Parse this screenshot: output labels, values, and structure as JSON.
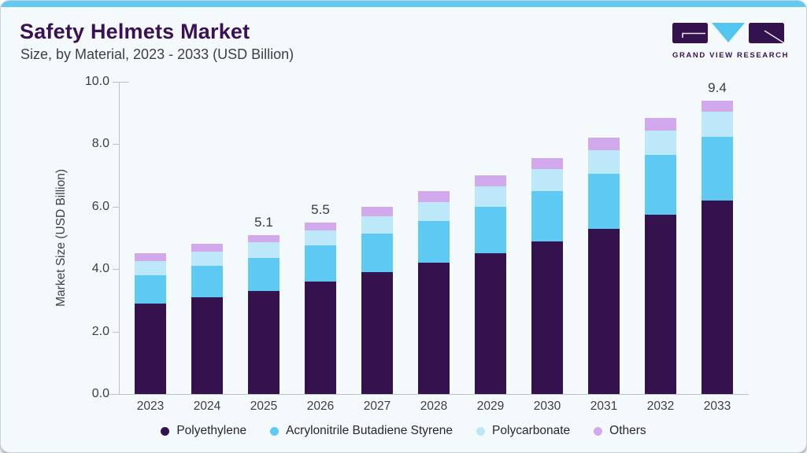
{
  "header": {
    "title": "Safety Helmets Market",
    "subtitle": "Size, by Material, 2023 - 2033 (USD Billion)",
    "logo_text": "GRAND VIEW RESEARCH"
  },
  "colors": {
    "accent_strip": "#64c9f1",
    "title_purple": "#3b1156",
    "card_background": "#f4f9fc",
    "axis_line": "#bcc2c9",
    "tick_text": "#3c3d44",
    "legend_text": "#28282e"
  },
  "chart_data": {
    "type": "bar",
    "stacked": true,
    "title": "Safety Helmets Market",
    "subtitle": "Size, by Material, 2023 - 2033 (USD Billion)",
    "xlabel": "",
    "ylabel": "Market Size (USD Billion)",
    "ylim": [
      0,
      10
    ],
    "ytick_step": 2,
    "ytick_labels": [
      "0.0",
      "2.0",
      "4.0",
      "6.0",
      "8.0",
      "10.0"
    ],
    "grid": false,
    "legend_position": "bottom",
    "categories": [
      "2023",
      "2024",
      "2025",
      "2026",
      "2027",
      "2028",
      "2029",
      "2030",
      "2031",
      "2032",
      "2033"
    ],
    "series": [
      {
        "name": "Polyethylene",
        "color": "#33124e",
        "values": [
          2.9,
          3.1,
          3.3,
          3.6,
          3.9,
          4.2,
          4.5,
          4.9,
          5.3,
          5.75,
          6.2
        ]
      },
      {
        "name": "Acrylonitrile Butadiene Styrene",
        "color": "#5ecaf4",
        "values": [
          0.9,
          1.0,
          1.05,
          1.15,
          1.25,
          1.35,
          1.5,
          1.6,
          1.75,
          1.9,
          2.05
        ]
      },
      {
        "name": "Polycarbonate",
        "color": "#bce8f9",
        "values": [
          0.45,
          0.45,
          0.5,
          0.5,
          0.55,
          0.6,
          0.65,
          0.7,
          0.75,
          0.8,
          0.8
        ]
      },
      {
        "name": "Others",
        "color": "#d2a9ec",
        "values": [
          0.25,
          0.25,
          0.25,
          0.25,
          0.3,
          0.35,
          0.35,
          0.35,
          0.4,
          0.4,
          0.35
        ]
      }
    ],
    "total_labels": {
      "2025": "5.1",
      "2026": "5.5",
      "2033": "9.4"
    }
  }
}
